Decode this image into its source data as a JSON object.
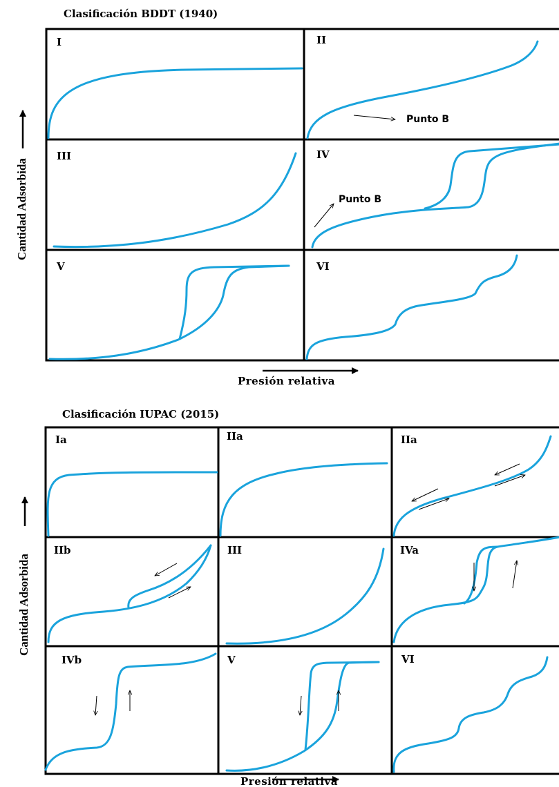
{
  "bddt": {
    "title": "Clasificación BDDT (1940)",
    "ylabel": "Cantidad Adsorbida",
    "xlabel": "Presión relativa",
    "panels": [
      {
        "label": "I"
      },
      {
        "label": "II",
        "annotation": "Punto B"
      },
      {
        "label": "III"
      },
      {
        "label": "IV",
        "annotation": "Punto B"
      },
      {
        "label": "V"
      },
      {
        "label": "VI"
      }
    ]
  },
  "iupac": {
    "title": "Clasificación IUPAC (2015)",
    "ylabel": "Cantidad Adsorbida",
    "xlabel": "Presión relativa",
    "panels": [
      {
        "label": "Ia"
      },
      {
        "label": "IIa"
      },
      {
        "label": "IIa"
      },
      {
        "label": "IIb"
      },
      {
        "label": "III"
      },
      {
        "label": "IVa"
      },
      {
        "label": "IVb"
      },
      {
        "label": "V"
      },
      {
        "label": "VI"
      }
    ]
  },
  "colors": {
    "curve": "#1aa3dc",
    "frame": "#000000"
  }
}
